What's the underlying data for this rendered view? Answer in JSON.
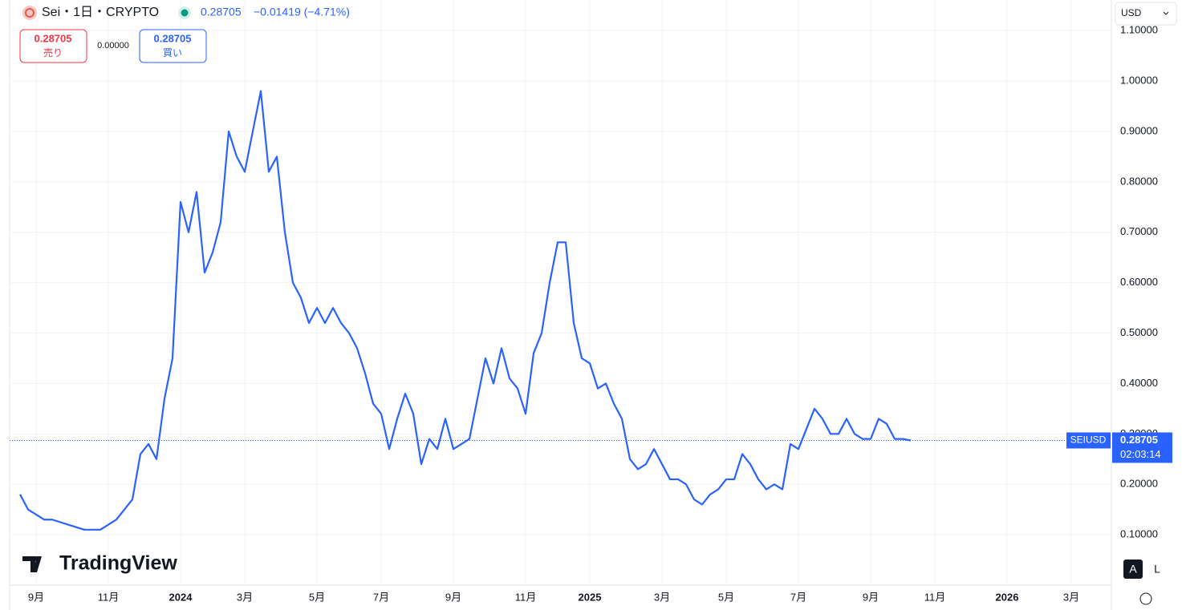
{
  "header": {
    "symbol": "Sei・1日・CRYPTO",
    "price": "0.28705",
    "change": "−0.01419 (−4.71%)",
    "sell_price": "0.28705",
    "sell_label": "売り",
    "spread": "0.00000",
    "buy_price": "0.28705",
    "buy_label": "買い",
    "currency": "USD",
    "logo": "TradingView",
    "auto_button": "A",
    "log_button": "L"
  },
  "chart_data": {
    "type": "line",
    "categories": [
      null,
      null,
      "9月",
      null,
      null,
      null,
      null,
      null,
      null,
      null,
      null,
      "11月",
      null,
      null,
      null,
      null,
      null,
      null,
      null,
      null,
      "2024",
      null,
      null,
      null,
      null,
      null,
      null,
      null,
      "3月",
      null,
      null,
      null,
      null,
      null,
      null,
      null,
      null,
      "5月",
      null,
      null,
      null,
      null,
      null,
      null,
      null,
      "7月",
      null,
      null,
      null,
      null,
      null,
      null,
      null,
      null,
      "9月",
      null,
      null,
      null,
      null,
      null,
      null,
      null,
      null,
      "11月",
      null,
      null,
      null,
      null,
      null,
      null,
      null,
      "2025",
      null,
      null,
      null,
      null,
      null,
      null,
      null,
      null,
      "3月",
      null,
      null,
      null,
      null,
      null,
      null,
      null,
      "5月",
      null,
      null,
      null,
      null,
      null,
      null,
      null,
      null,
      "7月",
      null,
      null,
      null,
      null,
      null,
      null,
      null,
      null,
      "9月",
      null,
      null,
      null,
      null,
      null,
      null,
      null,
      "11月",
      null,
      null,
      null,
      null,
      null,
      null,
      null,
      null,
      "2026",
      null,
      null,
      null,
      null,
      null,
      null,
      null,
      "3月"
    ],
    "series": [
      {
        "name": "SEIUSD",
        "color": "#2962ff",
        "values": [
          0.18,
          0.15,
          0.14,
          0.13,
          0.13,
          0.125,
          0.12,
          0.115,
          0.11,
          0.11,
          0.11,
          0.12,
          0.13,
          0.15,
          0.17,
          0.26,
          0.28,
          0.25,
          0.37,
          0.45,
          0.76,
          0.7,
          0.78,
          0.62,
          0.66,
          0.72,
          0.9,
          0.85,
          0.82,
          0.9,
          0.98,
          0.82,
          0.85,
          0.7,
          0.6,
          0.57,
          0.52,
          0.55,
          0.52,
          0.55,
          0.52,
          0.5,
          0.47,
          0.42,
          0.36,
          0.34,
          0.27,
          0.33,
          0.38,
          0.34,
          0.24,
          0.29,
          0.27,
          0.33,
          0.27,
          0.28,
          0.29,
          0.37,
          0.45,
          0.4,
          0.47,
          0.41,
          0.39,
          0.34,
          0.46,
          0.5,
          0.6,
          0.68,
          0.68,
          0.52,
          0.45,
          0.44,
          0.39,
          0.4,
          0.36,
          0.33,
          0.25,
          0.23,
          0.24,
          0.27,
          0.24,
          0.21,
          0.21,
          0.2,
          0.17,
          0.16,
          0.18,
          0.19,
          0.21,
          0.21,
          0.26,
          0.24,
          0.21,
          0.19,
          0.2,
          0.19,
          0.28,
          0.27,
          0.31,
          0.35,
          0.33,
          0.3,
          0.3,
          0.33,
          0.3,
          0.29,
          0.29,
          0.33,
          0.32,
          0.29,
          0.29,
          0.287,
          null,
          null,
          null,
          null,
          null,
          null,
          null,
          null,
          null,
          null,
          null,
          null,
          null,
          null,
          null,
          null,
          null,
          null,
          null,
          null
        ]
      }
    ],
    "ylim": [
      0,
      1.113
    ],
    "yticks": [
      {
        "value": 0.1,
        "label": "0.10000"
      },
      {
        "value": 0.2,
        "label": "0.20000"
      },
      {
        "value": 0.3,
        "label": "0.30000"
      },
      {
        "value": 0.4,
        "label": "0.40000"
      },
      {
        "value": 0.5,
        "label": "0.50000"
      },
      {
        "value": 0.6,
        "label": "0.60000"
      },
      {
        "value": 0.7,
        "label": "0.70000"
      },
      {
        "value": 0.8,
        "label": "0.80000"
      },
      {
        "value": 0.9,
        "label": "0.90000"
      },
      {
        "value": 1.0,
        "label": "1.00000"
      },
      {
        "value": 1.1,
        "label": "1.10000"
      }
    ],
    "grid": true,
    "price_tag": {
      "symbol": "SEIUSD",
      "price": 0.28705,
      "countdown": "02:03:14"
    }
  }
}
